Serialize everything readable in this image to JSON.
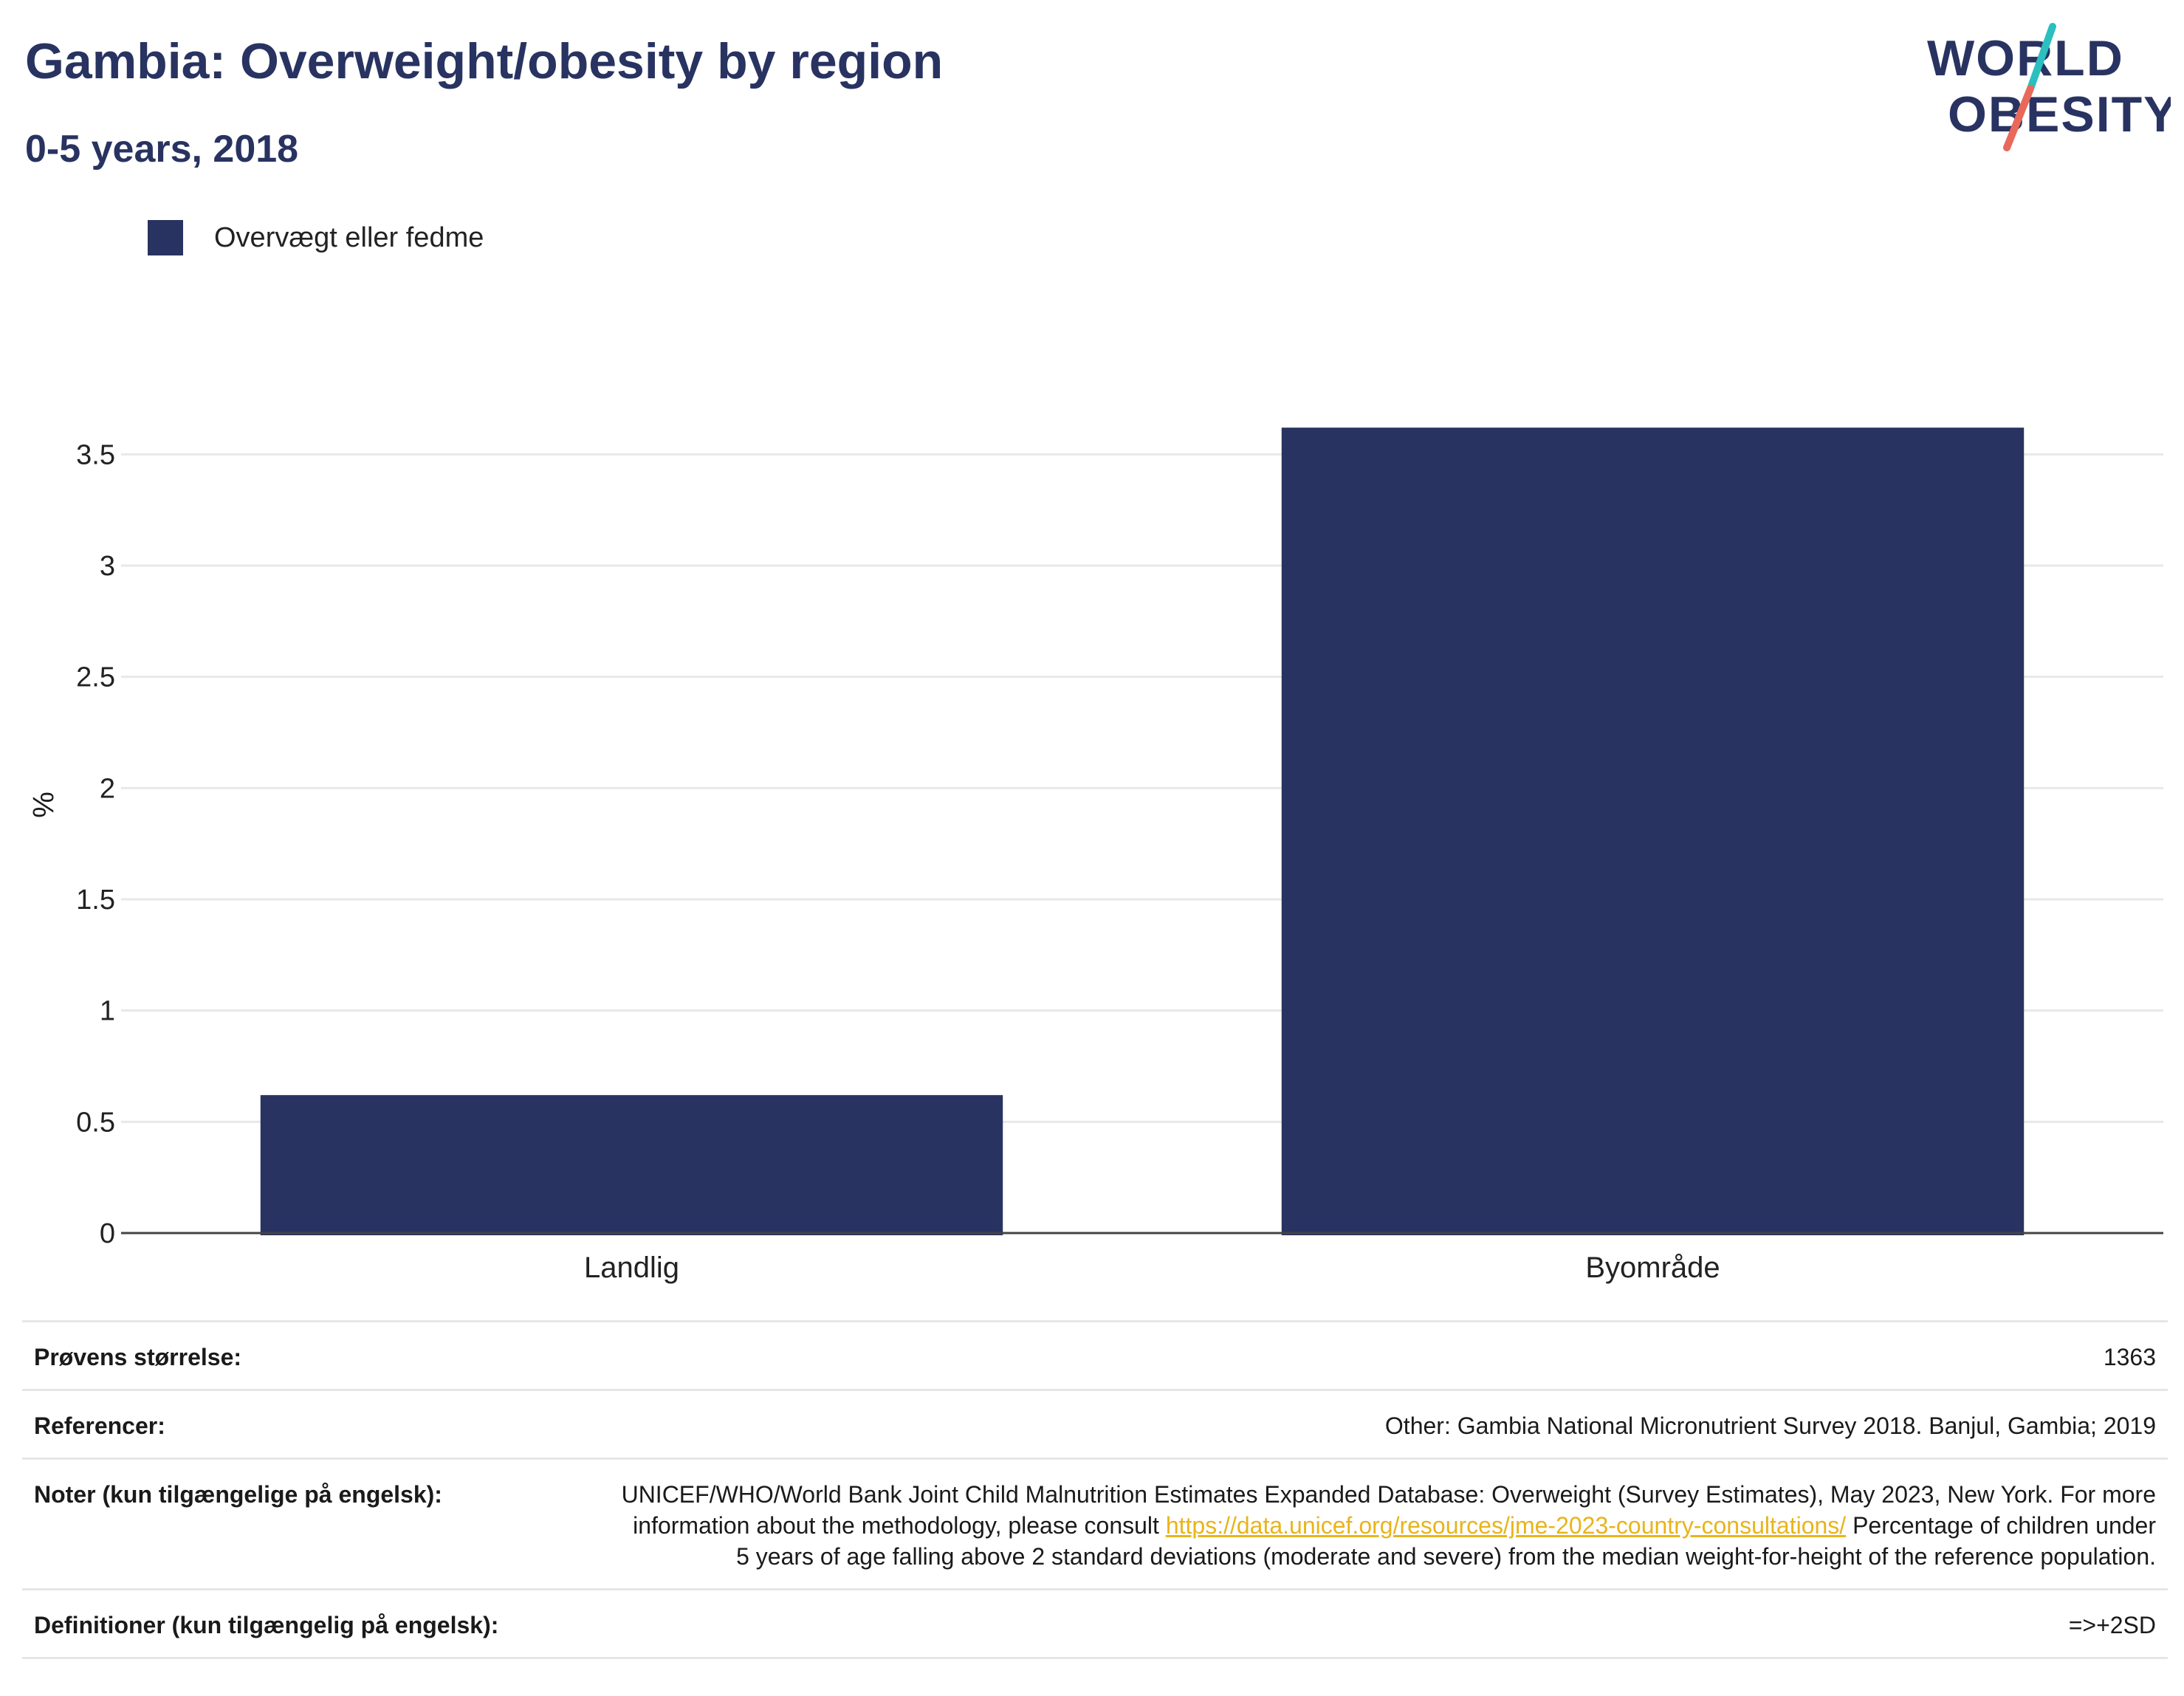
{
  "header": {
    "title": "Gambia: Overweight/obesity by region",
    "subtitle": "0-5 years, 2018"
  },
  "logo": {
    "line1": "WORLD",
    "line2": "OBESITY",
    "colors": {
      "text": "#283361",
      "slash_top": "#2bbfbf",
      "slash_bottom": "#e8695a"
    }
  },
  "chart_data": {
    "type": "bar",
    "title": "",
    "categories": [
      "Landlig",
      "Byområde"
    ],
    "series": [
      {
        "name": "Overvægt eller fedme",
        "values": [
          0.62,
          3.62
        ],
        "color": "#283361"
      }
    ],
    "xlabel": "",
    "ylabel": "%",
    "ylim": [
      0,
      3.75
    ],
    "yticks": [
      0,
      0.5,
      1,
      1.5,
      2,
      2.5,
      3,
      3.5
    ],
    "ytick_labels": [
      "0",
      "0.5",
      "1",
      "1.5",
      "2",
      "2.5",
      "3",
      "3.5"
    ],
    "grid": true,
    "legend_position": "top-left"
  },
  "info": {
    "sample_size": {
      "label": "Prøvens størrelse:",
      "value": "1363"
    },
    "references": {
      "label": "Referencer:",
      "value": "Other: Gambia National Micronutrient Survey 2018. Banjul, Gambia; 2019"
    },
    "notes": {
      "label": "Noter (kun tilgængelige på engelsk):",
      "text_before": "UNICEF/WHO/World Bank Joint Child Malnutrition Estimates Expanded Database: Overweight (Survey Estimates), May 2023, New York. For more information about the methodology, please consult ",
      "link": "https://data.unicef.org/resources/jme-2023-country-consultations/",
      "text_after": " Percentage of children under 5 years of age falling above 2 standard deviations (moderate and severe) from the median weight-for-height of the reference population."
    },
    "definitions": {
      "label": "Definitioner (kun tilgængelig på engelsk):",
      "value": "=>+2SD"
    }
  }
}
